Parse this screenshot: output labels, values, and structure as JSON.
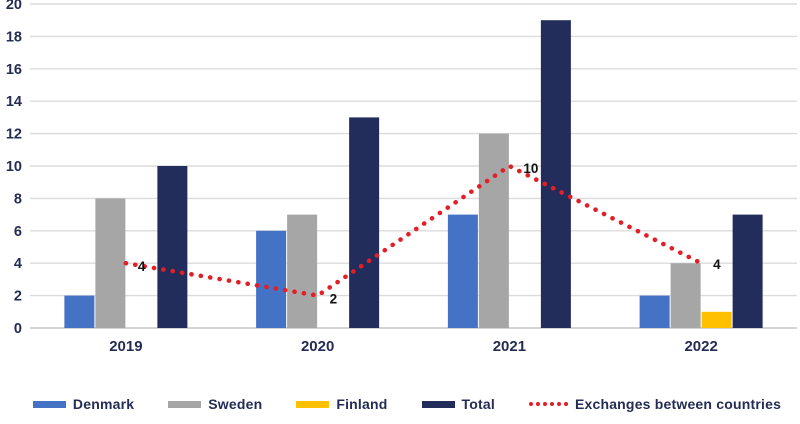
{
  "chart_data": {
    "type": "bar",
    "title": "",
    "categories": [
      "2019",
      "2020",
      "2021",
      "2022"
    ],
    "series": [
      {
        "name": "Denmark",
        "color": "#4472C4",
        "values": [
          2,
          6,
          7,
          2
        ]
      },
      {
        "name": "Sweden",
        "color": "#A6A6A6",
        "values": [
          8,
          7,
          12,
          4
        ]
      },
      {
        "name": "Finland",
        "color": "#FFC000",
        "values": [
          0,
          0,
          0,
          1
        ]
      },
      {
        "name": "Total",
        "color": "#232D5C",
        "values": [
          10,
          13,
          19,
          7
        ]
      }
    ],
    "line_series": {
      "name": "Exchanges between countries",
      "color": "#E21E26",
      "style": "dotted",
      "values": [
        4,
        2,
        10,
        4
      ],
      "labels": [
        "4",
        "2",
        "10",
        "4"
      ]
    },
    "y_axis": {
      "min": 0,
      "max": 20,
      "step": 2
    },
    "grid": true,
    "legend_position": "bottom"
  },
  "colors": {
    "axis_text": "#242C54",
    "grid": "#DCDCDC",
    "baseline": "#C6C6C6",
    "data_label": "#111111",
    "background": "#FFFFFF"
  }
}
